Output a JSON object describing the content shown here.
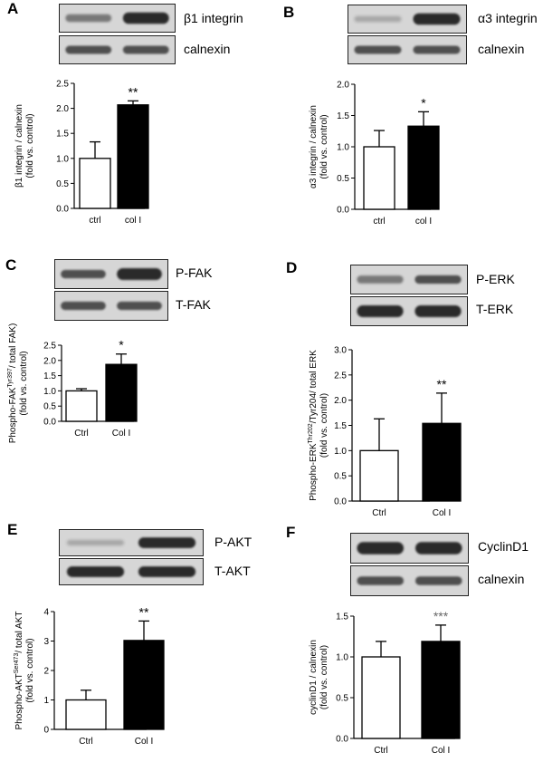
{
  "panels": [
    {
      "letter": "A",
      "blots": [
        {
          "label": "β1 integrin",
          "bands": [
            "light",
            "strong"
          ]
        },
        {
          "label": "calnexin",
          "bands": [
            "normal",
            "normal"
          ]
        }
      ],
      "chart": {
        "type": "bar",
        "categories": [
          "ctrl",
          "col I"
        ],
        "values": [
          1.0,
          2.07
        ],
        "errors": [
          0.33,
          0.08
        ],
        "fills": [
          "#ffffff",
          "#000000"
        ],
        "significance": [
          "",
          "**"
        ],
        "ylabel_lines": [
          "β1 integrin / calnexin",
          "(fold vs. control)"
        ],
        "ylim": [
          0,
          2.5
        ],
        "ticks": [
          "0.0",
          "0.5",
          "1.0",
          "1.5",
          "2.0",
          "2.5"
        ]
      }
    },
    {
      "letter": "B",
      "blots": [
        {
          "label": "α3 integrin",
          "bands": [
            "faint",
            "strong"
          ]
        },
        {
          "label": "calnexin",
          "bands": [
            "normal",
            "normal"
          ]
        }
      ],
      "chart": {
        "type": "bar",
        "categories": [
          "ctrl",
          "col I"
        ],
        "values": [
          1.0,
          1.33
        ],
        "errors": [
          0.26,
          0.23
        ],
        "fills": [
          "#ffffff",
          "#000000"
        ],
        "significance": [
          "",
          "*"
        ],
        "ylabel_lines": [
          "α3 integrin / calnexin",
          "(fold vs. control)"
        ],
        "ylim": [
          0,
          2.0
        ],
        "ticks": [
          "0.0",
          "0.5",
          "1.0",
          "1.5",
          "2.0"
        ]
      }
    },
    {
      "letter": "C",
      "blots": [
        {
          "label": "P-FAK",
          "bands": [
            "normal",
            "strong"
          ]
        },
        {
          "label": "T-FAK",
          "bands": [
            "normal",
            "normal"
          ]
        }
      ],
      "chart": {
        "type": "bar",
        "categories": [
          "Ctrl",
          "Col I"
        ],
        "values": [
          1.0,
          1.87
        ],
        "errors": [
          0.07,
          0.34
        ],
        "fills": [
          "#ffffff",
          "#000000"
        ],
        "significance": [
          "",
          "*"
        ],
        "ylabel_lines": [
          "Phospho-FAK^Tyr397/ total FAK)",
          "(fold vs. control)"
        ],
        "ylim": [
          0,
          2.5
        ],
        "ticks": [
          "0.0",
          "0.5",
          "1.0",
          "1.5",
          "2.0",
          "2.5"
        ]
      }
    },
    {
      "letter": "D",
      "blots": [
        {
          "label": "P-ERK",
          "bands": [
            "light",
            "normal"
          ]
        },
        {
          "label": "T-ERK",
          "bands": [
            "strong",
            "strong"
          ]
        }
      ],
      "chart": {
        "type": "bar",
        "categories": [
          "Ctrl",
          "Col I"
        ],
        "values": [
          1.0,
          1.54
        ],
        "errors": [
          0.63,
          0.6
        ],
        "fills": [
          "#ffffff",
          "#000000"
        ],
        "significance": [
          "",
          "**"
        ],
        "ylabel_lines": [
          "Phospho-ERK^Thr202/Tyr204/ total ERK",
          "(fold vs. control)"
        ],
        "ylim": [
          0,
          3.0
        ],
        "ticks": [
          "0.0",
          "0.5",
          "1.0",
          "1.5",
          "2.0",
          "2.5",
          "3.0"
        ]
      }
    },
    {
      "letter": "E",
      "blots": [
        {
          "label": "P-AKT",
          "bands": [
            "faint",
            "strong"
          ]
        },
        {
          "label": "T-AKT",
          "bands": [
            "strong",
            "strong"
          ]
        }
      ],
      "chart": {
        "type": "bar",
        "categories": [
          "Ctrl",
          "Col I"
        ],
        "values": [
          1.0,
          3.02
        ],
        "errors": [
          0.33,
          0.66
        ],
        "fills": [
          "#ffffff",
          "#000000"
        ],
        "significance": [
          "",
          "**"
        ],
        "ylabel_lines": [
          "Phospho-AKT^Ser473/ total AKT",
          "(fold vs. control)"
        ],
        "ylim": [
          0,
          4
        ],
        "ticks": [
          "0",
          "1",
          "2",
          "3",
          "4"
        ]
      }
    },
    {
      "letter": "F",
      "blots": [
        {
          "label": "CyclinD1",
          "bands": [
            "strong",
            "strong"
          ]
        },
        {
          "label": "calnexin",
          "bands": [
            "normal",
            "normal"
          ]
        }
      ],
      "chart": {
        "type": "bar",
        "categories": [
          "Ctrl",
          "Col I"
        ],
        "values": [
          1.0,
          1.19
        ],
        "errors": [
          0.19,
          0.2
        ],
        "fills": [
          "#ffffff",
          "#000000"
        ],
        "significance": [
          "",
          "***"
        ],
        "ylabel_lines": [
          "cyclinD1 / calnexin",
          "(fold vs. control)"
        ],
        "ylim": [
          0,
          1.5
        ],
        "ticks": [
          "0.0",
          "0.5",
          "1.0",
          "1.5"
        ]
      }
    }
  ]
}
